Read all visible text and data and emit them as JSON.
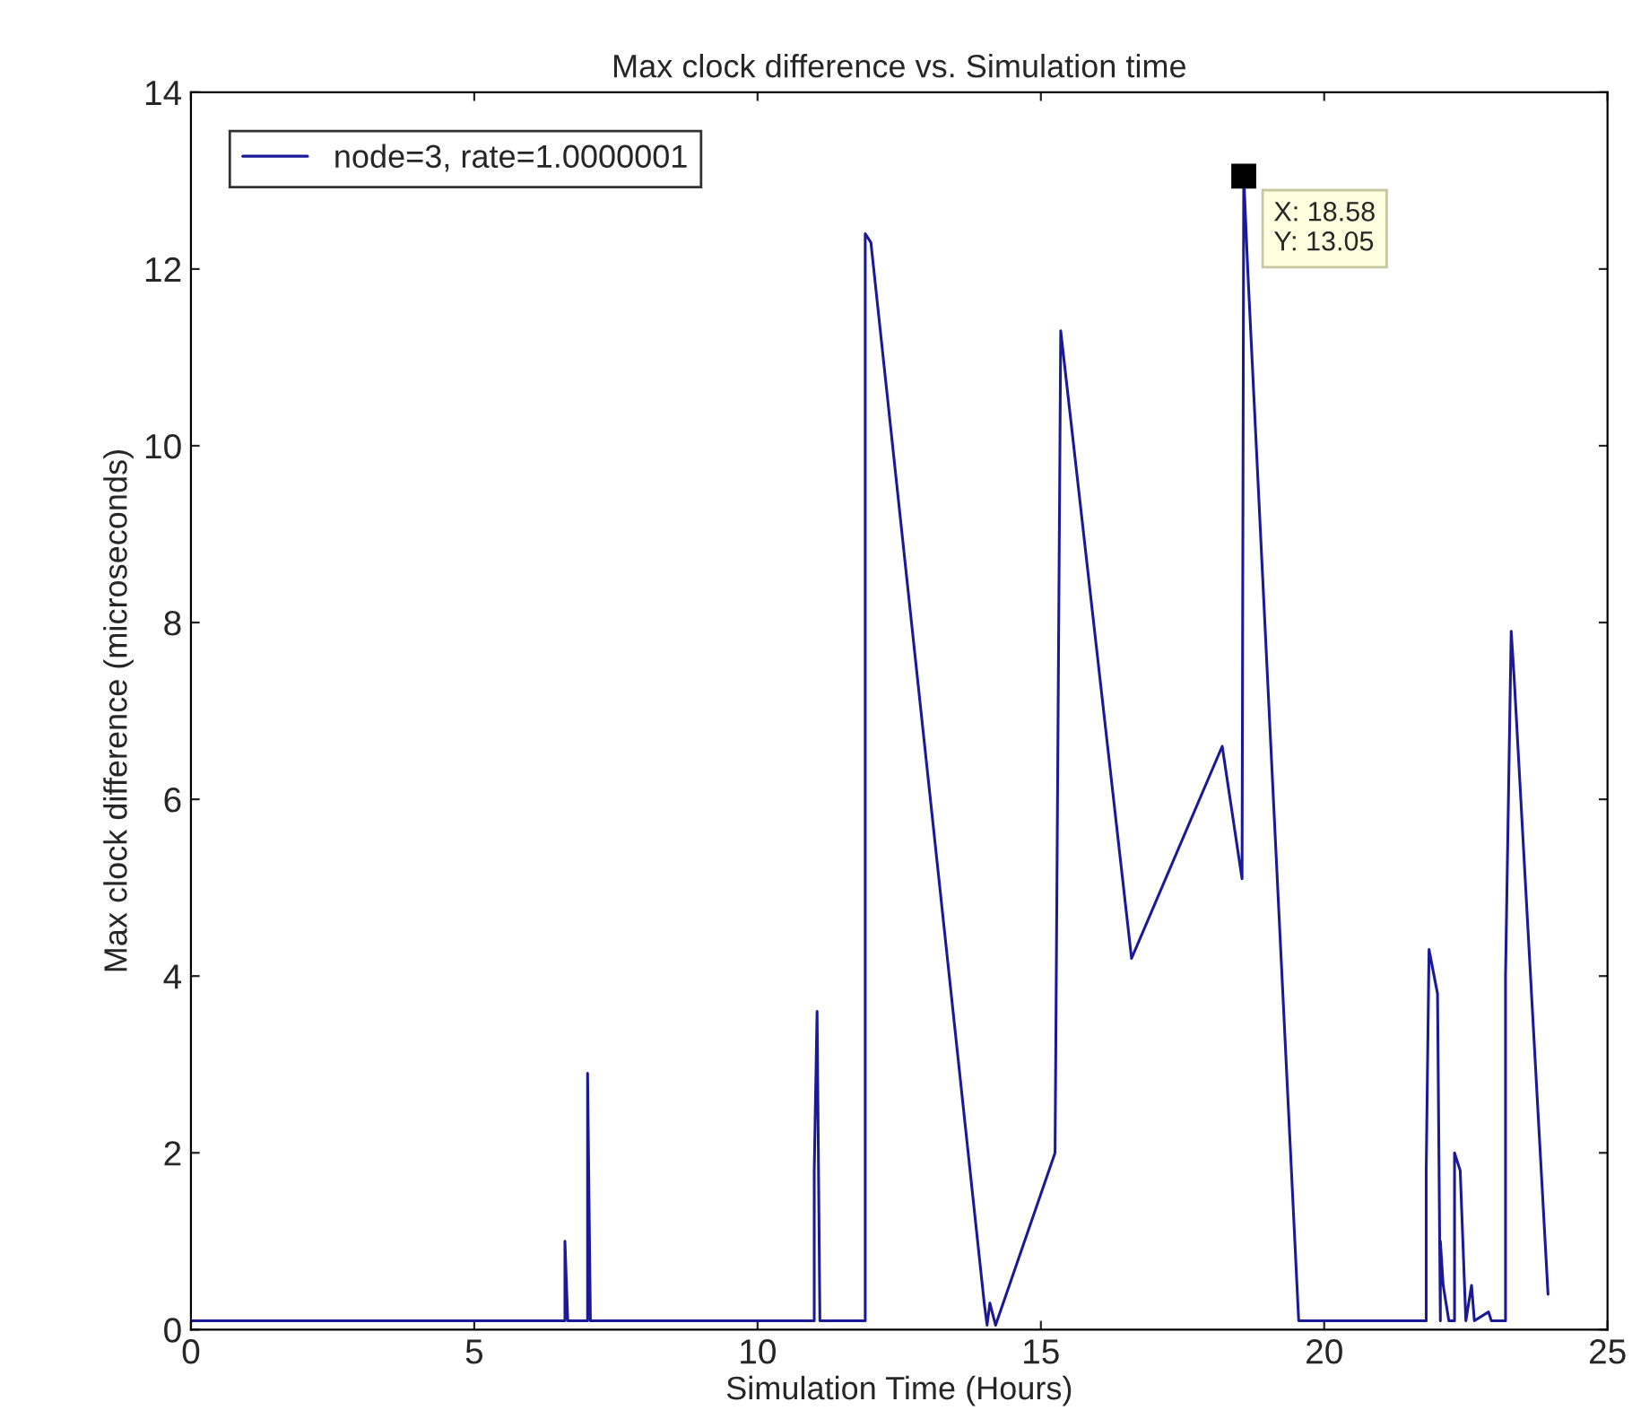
{
  "chart_data": {
    "type": "line",
    "title": "Max clock difference vs. Simulation time",
    "xlabel": "Simulation Time (Hours)",
    "ylabel": "Max clock difference (microseconds)",
    "xlim": [
      0,
      25
    ],
    "xticks": [
      0,
      5,
      10,
      15,
      20,
      25
    ],
    "ylim": [
      0,
      14
    ],
    "yticks": [
      0,
      2,
      4,
      6,
      8,
      10,
      12,
      14
    ],
    "grid": false,
    "legend": "top left",
    "marker": "none",
    "line_style": "solid",
    "annotations": [
      {
        "text": "X: 18.58\nY: 13.05",
        "x": 18.58,
        "y": 13.05
      }
    ],
    "series": [
      {
        "name": "node=3, rate=1.0000001",
        "color": "#1a1a99",
        "x": [
          0,
          6.6,
          6.6,
          6.65,
          7.0,
          7.0,
          7.05,
          11.0,
          11.0,
          11.05,
          11.1,
          11.9,
          11.9,
          12.0,
          14.0,
          14.05,
          14.1,
          14.2,
          15.25,
          15.3,
          15.35,
          16.6,
          18.2,
          18.55,
          18.58,
          18.65,
          19.55,
          21.8,
          21.8,
          21.85,
          22.0,
          22.05,
          22.05,
          22.1,
          22.2,
          22.3,
          22.3,
          22.4,
          22.5,
          22.6,
          22.65,
          22.9,
          22.95,
          23.2,
          23.2,
          23.3,
          23.35,
          23.95
        ],
        "values": [
          0.1,
          0.1,
          1.0,
          0.1,
          0.1,
          2.9,
          0.1,
          0.1,
          1.8,
          3.6,
          0.1,
          0.1,
          12.4,
          12.3,
          0.3,
          0.05,
          0.3,
          0.05,
          2.0,
          6.6,
          11.3,
          4.2,
          6.6,
          5.1,
          13.05,
          12.0,
          0.1,
          0.1,
          1.8,
          4.3,
          3.8,
          0.1,
          1.0,
          0.5,
          0.1,
          0.1,
          2.0,
          1.8,
          0.1,
          0.5,
          0.1,
          0.2,
          0.1,
          0.1,
          4.0,
          7.9,
          7.4,
          0.4
        ]
      }
    ]
  }
}
